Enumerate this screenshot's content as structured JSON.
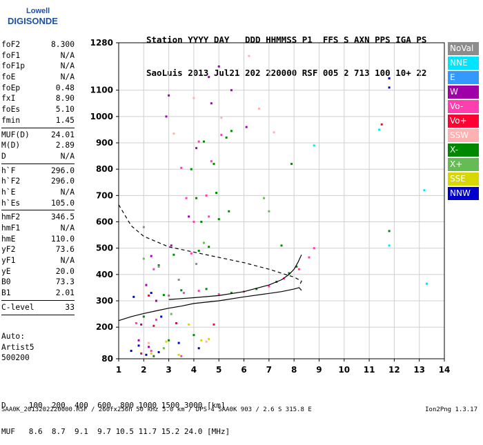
{
  "logo": {
    "top": "Lowell",
    "bottom": "DIGISONDE"
  },
  "header": {
    "line1": "Station YYYY DAY   DDD HHMMSS P1  FFS S AXN PPS IGA PS",
    "line2": "SaoLuis 2013 Jul21 202 220000 RSF 005 2 713 100 10+ 22"
  },
  "params": [
    {
      "label": "foF2",
      "value": "8.300"
    },
    {
      "label": "foF1",
      "value": "N/A"
    },
    {
      "label": "foF1p",
      "value": "N/A"
    },
    {
      "label": "foE",
      "value": "N/A"
    },
    {
      "label": "foEp",
      "value": "0.48"
    },
    {
      "label": "fxI",
      "value": "8.90"
    },
    {
      "label": "foEs",
      "value": "5.10"
    },
    {
      "label": "fmin",
      "value": "1.45",
      "sep": true
    },
    {
      "label": "MUF(D)",
      "value": "24.01"
    },
    {
      "label": "M(D)",
      "value": "2.89"
    },
    {
      "label": "D",
      "value": "N/A",
      "sep": true
    },
    {
      "label": "h`F",
      "value": "296.0"
    },
    {
      "label": "h`F2",
      "value": "296.0"
    },
    {
      "label": "h`E",
      "value": "N/A"
    },
    {
      "label": "h`Es",
      "value": "105.0",
      "sep": true
    },
    {
      "label": "hmF2",
      "value": "346.5"
    },
    {
      "label": "hmF1",
      "value": "N/A"
    },
    {
      "label": "hmE",
      "value": "110.0"
    },
    {
      "label": "yF2",
      "value": "73.6"
    },
    {
      "label": "yF1",
      "value": "N/A"
    },
    {
      "label": "yE",
      "value": "20.0"
    },
    {
      "label": "B0",
      "value": "73.3"
    },
    {
      "label": "B1",
      "value": "2.01",
      "sep": true
    },
    {
      "label": "C-level",
      "value": "33",
      "sep": true
    }
  ],
  "auto": [
    "Auto:",
    "Artist5",
    "500200"
  ],
  "legend": [
    {
      "label": "NoVal",
      "color": "#8c8c8c"
    },
    {
      "label": "NNE",
      "color": "#00e5ff"
    },
    {
      "label": "E",
      "color": "#3399ff"
    },
    {
      "label": "W",
      "color": "#a000a8"
    },
    {
      "label": "Vo-",
      "color": "#ff3fb0"
    },
    {
      "label": "Vo+",
      "color": "#ff0033"
    },
    {
      "label": "SSW",
      "color": "#ffb0b0"
    },
    {
      "label": "X-",
      "color": "#008800"
    },
    {
      "label": "X+",
      "color": "#66bb55"
    },
    {
      "label": "SSE",
      "color": "#d8d800"
    },
    {
      "label": "NNW",
      "color": "#0000cc"
    }
  ],
  "muf_table": {
    "line1": "D     100  200  400  600  800 1000 1500 3000 [km]",
    "line2": "MUF   8.6  8.7  9.1  9.7 10.5 11.7 15.2 24.0 [MHz]"
  },
  "footer": {
    "left": "SAA0K_2013202220000.RSF / 260fx256h 50 kHz 5.0 km / DPS-4 SAA0K 903 / 2.6 S 315.8 E",
    "right": "Ion2Png 1.3.17"
  },
  "chart_data": {
    "type": "scatter",
    "x_ticks": [
      1,
      2,
      3,
      4,
      5,
      6,
      7,
      8,
      9,
      10,
      11,
      12,
      13,
      14
    ],
    "y_ticks": [
      80,
      200,
      300,
      400,
      500,
      600,
      700,
      800,
      900,
      1000,
      1100,
      1280
    ],
    "xlim": [
      1,
      14
    ],
    "ylim": [
      80,
      1280
    ],
    "grid": true,
    "series": [
      {
        "name": "X-",
        "color": "#008800",
        "values": [
          [
            2.0,
            240
          ],
          [
            2.8,
            322
          ],
          [
            3.5,
            340
          ],
          [
            4.5,
            345
          ],
          [
            5.5,
            330
          ],
          [
            6.5,
            345
          ],
          [
            7.3,
            372
          ],
          [
            7.8,
            405
          ],
          [
            8.1,
            430
          ],
          [
            2.6,
            435
          ],
          [
            3.2,
            475
          ],
          [
            4.2,
            490
          ],
          [
            4.6,
            505
          ],
          [
            4.3,
            600
          ],
          [
            5.0,
            610
          ],
          [
            5.4,
            640
          ],
          [
            4.1,
            690
          ],
          [
            4.9,
            710
          ],
          [
            3.9,
            800
          ],
          [
            4.8,
            820
          ],
          [
            4.4,
            905
          ],
          [
            5.3,
            920
          ],
          [
            5.5,
            945
          ],
          [
            7.5,
            510
          ],
          [
            7.9,
            820
          ],
          [
            11.8,
            565
          ],
          [
            3.0,
            150
          ],
          [
            2.4,
            90
          ],
          [
            4.0,
            170
          ]
        ]
      },
      {
        "name": "Vo-",
        "color": "#ff3fb0",
        "values": [
          [
            1.7,
            215
          ],
          [
            2.5,
            228
          ],
          [
            3.0,
            320
          ],
          [
            3.6,
            330
          ],
          [
            4.2,
            338
          ],
          [
            5.0,
            325
          ],
          [
            6.0,
            335
          ],
          [
            7.0,
            355
          ],
          [
            7.6,
            385
          ],
          [
            8.2,
            420
          ],
          [
            8.6,
            465
          ],
          [
            8.8,
            500
          ],
          [
            4.0,
            600
          ],
          [
            4.6,
            620
          ],
          [
            3.7,
            690
          ],
          [
            4.5,
            700
          ],
          [
            3.5,
            805
          ],
          [
            4.7,
            830
          ],
          [
            4.2,
            905
          ],
          [
            5.1,
            930
          ],
          [
            2.4,
            420
          ],
          [
            3.9,
            480
          ],
          [
            2.3,
            110
          ],
          [
            3.5,
            90
          ]
        ]
      },
      {
        "name": "W",
        "color": "#a000a8",
        "values": [
          [
            1.9,
            210
          ],
          [
            2.5,
            300
          ],
          [
            2.1,
            360
          ],
          [
            2.3,
            470
          ],
          [
            3.1,
            510
          ],
          [
            2.9,
            1000
          ],
          [
            3.0,
            1080
          ],
          [
            4.6,
            1150
          ],
          [
            4.7,
            1050
          ],
          [
            5.0,
            1190
          ],
          [
            5.5,
            1100
          ],
          [
            4.1,
            880
          ],
          [
            3.8,
            620
          ],
          [
            6.1,
            960
          ],
          [
            2.2,
            125
          ],
          [
            1.8,
            150
          ]
        ]
      },
      {
        "name": "NNW",
        "color": "#0000cc",
        "values": [
          [
            1.5,
            110
          ],
          [
            1.8,
            130
          ],
          [
            2.1,
            95
          ],
          [
            2.6,
            105
          ],
          [
            1.6,
            315
          ],
          [
            2.3,
            330
          ],
          [
            2.7,
            240
          ],
          [
            11.8,
            1110
          ],
          [
            11.8,
            1145
          ],
          [
            3.4,
            140
          ],
          [
            4.2,
            120
          ]
        ]
      },
      {
        "name": "Vo+",
        "color": "#ff0033",
        "values": [
          [
            11.5,
            970
          ],
          [
            2.4,
            205
          ],
          [
            3.3,
            215
          ],
          [
            4.8,
            210
          ],
          [
            2.2,
            320
          ],
          [
            1.9,
            100
          ]
        ]
      },
      {
        "name": "SSW",
        "color": "#ffb0b0",
        "values": [
          [
            4.0,
            1070
          ],
          [
            5.1,
            995
          ],
          [
            6.2,
            1230
          ],
          [
            6.6,
            1030
          ],
          [
            7.2,
            940
          ],
          [
            3.2,
            935
          ],
          [
            2.2,
            140
          ],
          [
            4.5,
            145
          ]
        ]
      },
      {
        "name": "SSE",
        "color": "#d8d800",
        "values": [
          [
            2.3,
            100
          ],
          [
            3.4,
            95
          ],
          [
            4.3,
            150
          ],
          [
            3.8,
            210
          ],
          [
            2.9,
            145
          ],
          [
            4.6,
            155
          ]
        ]
      },
      {
        "name": "NNE",
        "color": "#00e5ff",
        "values": [
          [
            11.8,
            510
          ],
          [
            13.2,
            720
          ],
          [
            13.3,
            365
          ],
          [
            11.4,
            950
          ],
          [
            8.8,
            890
          ]
        ]
      },
      {
        "name": "X+",
        "color": "#66bb55",
        "values": [
          [
            2.0,
            460
          ],
          [
            3.1,
            250
          ],
          [
            4.4,
            520
          ],
          [
            6.8,
            690
          ],
          [
            7.0,
            640
          ],
          [
            2.8,
            120
          ]
        ]
      },
      {
        "name": "NoVal",
        "color": "#8c8c8c",
        "values": [
          [
            2.6,
            430
          ],
          [
            3.4,
            380
          ],
          [
            4.1,
            440
          ],
          [
            2.0,
            580
          ]
        ]
      }
    ],
    "curves": {
      "o_trace": [
        [
          1.0,
          225
        ],
        [
          1.5,
          240
        ],
        [
          2.0,
          252
        ],
        [
          2.5,
          262
        ],
        [
          3.0,
          272
        ],
        [
          3.5,
          280
        ],
        [
          4.0,
          290
        ],
        [
          5.0,
          300
        ],
        [
          6.0,
          315
        ],
        [
          7.0,
          328
        ],
        [
          7.5,
          335
        ],
        [
          8.0,
          345
        ],
        [
          8.2,
          350
        ],
        [
          8.3,
          340
        ]
      ],
      "o_trace_upper": [
        [
          3.0,
          305
        ],
        [
          4.0,
          312
        ],
        [
          5.0,
          320
        ],
        [
          6.0,
          335
        ],
        [
          7.0,
          360
        ],
        [
          7.5,
          380
        ],
        [
          7.8,
          400
        ],
        [
          8.0,
          420
        ],
        [
          8.15,
          445
        ],
        [
          8.3,
          475
        ]
      ],
      "profile_dashed": [
        [
          1.0,
          665
        ],
        [
          1.5,
          585
        ],
        [
          2.0,
          545
        ],
        [
          3.0,
          505
        ],
        [
          4.0,
          485
        ],
        [
          5.0,
          465
        ],
        [
          6.0,
          445
        ],
        [
          7.0,
          420
        ],
        [
          7.5,
          405
        ],
        [
          8.0,
          390
        ],
        [
          8.3,
          375
        ],
        [
          8.2,
          355
        ]
      ]
    }
  }
}
